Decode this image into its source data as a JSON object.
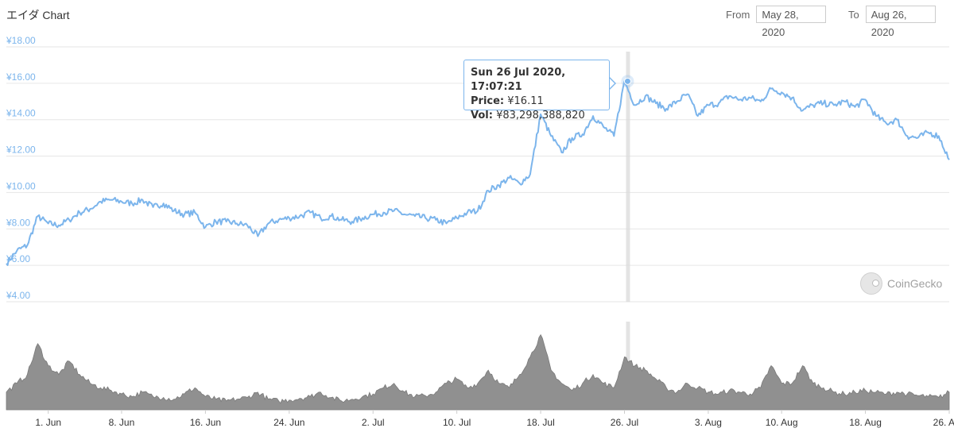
{
  "header": {
    "title": "エイダ Chart",
    "from_label": "From",
    "from_value": "May 28, 2020",
    "to_label": "To",
    "to_value": "Aug 26, 2020"
  },
  "tooltip": {
    "date": "Sun 26 Jul 2020, 17:07:21",
    "price_label": "Price:",
    "price_value": "¥16.11",
    "vol_label": "Vol:",
    "vol_value": "¥83,298,388,820"
  },
  "watermark": "CoinGecko",
  "colors": {
    "price_line": "#7cb5ec",
    "volume_fill": "#909090",
    "grid": "#e6e6e6",
    "axis_text": "#7cb5ec",
    "x_text": "#333333"
  },
  "chart_data": {
    "type": "line",
    "x_axis": {
      "type": "date",
      "min": "2020-05-28",
      "max": "2020-08-26",
      "ticks": [
        {
          "date": "2020-06-01",
          "label": "1. Jun"
        },
        {
          "date": "2020-06-08",
          "label": "8. Jun"
        },
        {
          "date": "2020-06-16",
          "label": "16. Jun"
        },
        {
          "date": "2020-06-24",
          "label": "24. Jun"
        },
        {
          "date": "2020-07-02",
          "label": "2. Jul"
        },
        {
          "date": "2020-07-10",
          "label": "10. Jul"
        },
        {
          "date": "2020-07-18",
          "label": "18. Jul"
        },
        {
          "date": "2020-07-26",
          "label": "26. Jul"
        },
        {
          "date": "2020-08-03",
          "label": "3. Aug"
        },
        {
          "date": "2020-08-10",
          "label": "10. Aug"
        },
        {
          "date": "2020-08-18",
          "label": "18. Aug"
        },
        {
          "date": "2020-08-26",
          "label": "26. Aug"
        }
      ]
    },
    "y_axis": {
      "ylim": [
        4,
        18
      ],
      "ticks": [
        {
          "value": 18,
          "label": "¥18.00"
        },
        {
          "value": 16,
          "label": "¥16.00"
        },
        {
          "value": 14,
          "label": "¥14.00"
        },
        {
          "value": 12,
          "label": "¥12.00"
        },
        {
          "value": 10,
          "label": "¥10.00"
        },
        {
          "value": 8,
          "label": "¥8.00"
        },
        {
          "value": 6,
          "label": "¥6.00"
        },
        {
          "value": 4,
          "label": "¥4.00"
        }
      ],
      "grid": true
    },
    "series": [
      {
        "key": "price",
        "points": [
          [
            "2020-05-28",
            6.1
          ],
          [
            "2020-05-29",
            6.8
          ],
          [
            "2020-05-30",
            7.1
          ],
          [
            "2020-05-31",
            8.7
          ],
          [
            "2020-06-01",
            8.3
          ],
          [
            "2020-06-02",
            8.2
          ],
          [
            "2020-06-03",
            8.5
          ],
          [
            "2020-06-04",
            8.9
          ],
          [
            "2020-06-05",
            9.1
          ],
          [
            "2020-06-06",
            9.5
          ],
          [
            "2020-06-07",
            9.6
          ],
          [
            "2020-06-08",
            9.5
          ],
          [
            "2020-06-09",
            9.4
          ],
          [
            "2020-06-10",
            9.6
          ],
          [
            "2020-06-11",
            9.2
          ],
          [
            "2020-06-12",
            9.4
          ],
          [
            "2020-06-13",
            9.0
          ],
          [
            "2020-06-14",
            8.8
          ],
          [
            "2020-06-15",
            8.9
          ],
          [
            "2020-06-16",
            8.1
          ],
          [
            "2020-06-17",
            8.4
          ],
          [
            "2020-06-18",
            8.4
          ],
          [
            "2020-06-19",
            8.3
          ],
          [
            "2020-06-20",
            8.2
          ],
          [
            "2020-06-21",
            7.6
          ],
          [
            "2020-06-22",
            8.3
          ],
          [
            "2020-06-23",
            8.5
          ],
          [
            "2020-06-24",
            8.6
          ],
          [
            "2020-06-25",
            8.7
          ],
          [
            "2020-06-26",
            8.9
          ],
          [
            "2020-06-27",
            8.6
          ],
          [
            "2020-06-28",
            8.7
          ],
          [
            "2020-06-29",
            8.5
          ],
          [
            "2020-06-30",
            8.4
          ],
          [
            "2020-07-01",
            8.6
          ],
          [
            "2020-07-02",
            8.8
          ],
          [
            "2020-07-03",
            8.9
          ],
          [
            "2020-07-04",
            9.0
          ],
          [
            "2020-07-05",
            8.8
          ],
          [
            "2020-07-06",
            8.7
          ],
          [
            "2020-07-07",
            8.6
          ],
          [
            "2020-07-08",
            8.5
          ],
          [
            "2020-07-09",
            8.3
          ],
          [
            "2020-07-10",
            8.6
          ],
          [
            "2020-07-11",
            8.9
          ],
          [
            "2020-07-12",
            9.0
          ],
          [
            "2020-07-13",
            10.1
          ],
          [
            "2020-07-14",
            10.4
          ],
          [
            "2020-07-15",
            10.8
          ],
          [
            "2020-07-16",
            10.5
          ],
          [
            "2020-07-17",
            11.0
          ],
          [
            "2020-07-18",
            14.3
          ],
          [
            "2020-07-19",
            13.1
          ],
          [
            "2020-07-20",
            12.2
          ],
          [
            "2020-07-21",
            13.0
          ],
          [
            "2020-07-22",
            13.2
          ],
          [
            "2020-07-23",
            14.2
          ],
          [
            "2020-07-24",
            13.6
          ],
          [
            "2020-07-25",
            13.1
          ],
          [
            "2020-07-26",
            16.11
          ],
          [
            "2020-07-27",
            14.8
          ],
          [
            "2020-07-28",
            15.3
          ],
          [
            "2020-07-29",
            14.9
          ],
          [
            "2020-07-30",
            14.6
          ],
          [
            "2020-07-31",
            15.0
          ],
          [
            "2020-08-01",
            15.4
          ],
          [
            "2020-08-02",
            14.2
          ],
          [
            "2020-08-03",
            14.8
          ],
          [
            "2020-08-04",
            14.9
          ],
          [
            "2020-08-05",
            15.3
          ],
          [
            "2020-08-06",
            15.1
          ],
          [
            "2020-08-07",
            15.2
          ],
          [
            "2020-08-08",
            15.0
          ],
          [
            "2020-08-09",
            15.7
          ],
          [
            "2020-08-10",
            15.5
          ],
          [
            "2020-08-11",
            15.2
          ],
          [
            "2020-08-12",
            14.5
          ],
          [
            "2020-08-13",
            14.8
          ],
          [
            "2020-08-14",
            14.9
          ],
          [
            "2020-08-15",
            14.8
          ],
          [
            "2020-08-16",
            15.0
          ],
          [
            "2020-08-17",
            14.7
          ],
          [
            "2020-08-18",
            15.1
          ],
          [
            "2020-08-19",
            14.2
          ],
          [
            "2020-08-20",
            13.8
          ],
          [
            "2020-08-21",
            14.0
          ],
          [
            "2020-08-22",
            13.1
          ],
          [
            "2020-08-23",
            13.0
          ],
          [
            "2020-08-24",
            13.3
          ],
          [
            "2020-08-25",
            13.1
          ],
          [
            "2020-08-26",
            11.8
          ]
        ]
      },
      {
        "key": "volume",
        "points": [
          [
            "2020-05-28",
            0.2
          ],
          [
            "2020-05-29",
            0.3
          ],
          [
            "2020-05-30",
            0.4
          ],
          [
            "2020-05-31",
            0.75
          ],
          [
            "2020-06-01",
            0.5
          ],
          [
            "2020-06-02",
            0.4
          ],
          [
            "2020-06-03",
            0.55
          ],
          [
            "2020-06-04",
            0.4
          ],
          [
            "2020-06-05",
            0.3
          ],
          [
            "2020-06-06",
            0.25
          ],
          [
            "2020-06-07",
            0.22
          ],
          [
            "2020-06-08",
            0.18
          ],
          [
            "2020-06-09",
            0.15
          ],
          [
            "2020-06-10",
            0.2
          ],
          [
            "2020-06-11",
            0.15
          ],
          [
            "2020-06-12",
            0.14
          ],
          [
            "2020-06-13",
            0.12
          ],
          [
            "2020-06-14",
            0.18
          ],
          [
            "2020-06-15",
            0.25
          ],
          [
            "2020-06-16",
            0.15
          ],
          [
            "2020-06-17",
            0.12
          ],
          [
            "2020-06-18",
            0.1
          ],
          [
            "2020-06-19",
            0.12
          ],
          [
            "2020-06-20",
            0.14
          ],
          [
            "2020-06-21",
            0.2
          ],
          [
            "2020-06-22",
            0.12
          ],
          [
            "2020-06-23",
            0.1
          ],
          [
            "2020-06-24",
            0.11
          ],
          [
            "2020-06-25",
            0.13
          ],
          [
            "2020-06-26",
            0.15
          ],
          [
            "2020-06-27",
            0.2
          ],
          [
            "2020-06-28",
            0.14
          ],
          [
            "2020-06-29",
            0.1
          ],
          [
            "2020-06-30",
            0.12
          ],
          [
            "2020-07-01",
            0.15
          ],
          [
            "2020-07-02",
            0.18
          ],
          [
            "2020-07-03",
            0.25
          ],
          [
            "2020-07-04",
            0.3
          ],
          [
            "2020-07-05",
            0.2
          ],
          [
            "2020-07-06",
            0.15
          ],
          [
            "2020-07-07",
            0.16
          ],
          [
            "2020-07-08",
            0.2
          ],
          [
            "2020-07-09",
            0.3
          ],
          [
            "2020-07-10",
            0.35
          ],
          [
            "2020-07-11",
            0.25
          ],
          [
            "2020-07-12",
            0.3
          ],
          [
            "2020-07-13",
            0.45
          ],
          [
            "2020-07-14",
            0.3
          ],
          [
            "2020-07-15",
            0.25
          ],
          [
            "2020-07-16",
            0.4
          ],
          [
            "2020-07-17",
            0.6
          ],
          [
            "2020-07-18",
            0.85
          ],
          [
            "2020-07-19",
            0.45
          ],
          [
            "2020-07-20",
            0.3
          ],
          [
            "2020-07-21",
            0.22
          ],
          [
            "2020-07-22",
            0.3
          ],
          [
            "2020-07-23",
            0.4
          ],
          [
            "2020-07-24",
            0.3
          ],
          [
            "2020-07-25",
            0.25
          ],
          [
            "2020-07-26",
            0.6
          ],
          [
            "2020-07-27",
            0.5
          ],
          [
            "2020-07-28",
            0.45
          ],
          [
            "2020-07-29",
            0.35
          ],
          [
            "2020-07-30",
            0.25
          ],
          [
            "2020-07-31",
            0.2
          ],
          [
            "2020-08-01",
            0.3
          ],
          [
            "2020-08-02",
            0.25
          ],
          [
            "2020-08-03",
            0.2
          ],
          [
            "2020-08-04",
            0.18
          ],
          [
            "2020-08-05",
            0.22
          ],
          [
            "2020-08-06",
            0.2
          ],
          [
            "2020-08-07",
            0.18
          ],
          [
            "2020-08-08",
            0.25
          ],
          [
            "2020-08-09",
            0.5
          ],
          [
            "2020-08-10",
            0.3
          ],
          [
            "2020-08-11",
            0.3
          ],
          [
            "2020-08-12",
            0.5
          ],
          [
            "2020-08-13",
            0.3
          ],
          [
            "2020-08-14",
            0.25
          ],
          [
            "2020-08-15",
            0.2
          ],
          [
            "2020-08-16",
            0.18
          ],
          [
            "2020-08-17",
            0.2
          ],
          [
            "2020-08-18",
            0.22
          ],
          [
            "2020-08-19",
            0.2
          ],
          [
            "2020-08-20",
            0.18
          ],
          [
            "2020-08-21",
            0.2
          ],
          [
            "2020-08-22",
            0.18
          ],
          [
            "2020-08-23",
            0.16
          ],
          [
            "2020-08-24",
            0.15
          ],
          [
            "2020-08-25",
            0.14
          ],
          [
            "2020-08-26",
            0.2
          ]
        ]
      }
    ],
    "highlight": {
      "date": "2020-07-26",
      "value": 16.11
    }
  }
}
